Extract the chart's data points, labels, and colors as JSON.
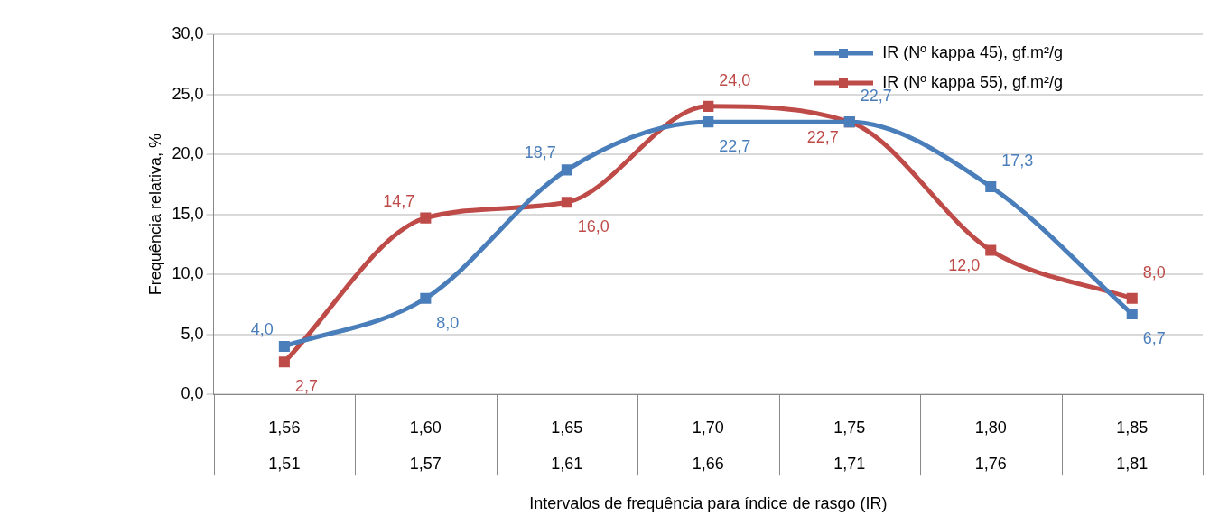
{
  "chart_data": {
    "type": "line",
    "xlabel": "Intervalos de frequência para índice de rasgo (IR)",
    "ylabel": "Frequência relativa, %",
    "categories": [
      "1,56\n1,51",
      "1,60\n1,57",
      "1,65\n1,61",
      "1,70\n1,66",
      "1,75\n1,71",
      "1,80\n1,76",
      "1,85\n1,81"
    ],
    "ylim": [
      0,
      30
    ],
    "yticks": [
      {
        "value": 0,
        "label": "0,0"
      },
      {
        "value": 5,
        "label": "5,0"
      },
      {
        "value": 10,
        "label": "10,0"
      },
      {
        "value": 15,
        "label": "15,0"
      },
      {
        "value": 20,
        "label": "20,0"
      },
      {
        "value": 25,
        "label": "25,0"
      },
      {
        "value": 30,
        "label": "30,0"
      }
    ],
    "grid": "y",
    "legend": "top right",
    "marker": "square",
    "line_style": "solid",
    "series": [
      {
        "name": "IR (Nº kappa 45), gf.m²/g",
        "color": "#4a7ebb",
        "values": [
          4.0,
          8.0,
          18.7,
          22.7,
          22.7,
          17.3,
          6.7
        ],
        "value_labels": [
          "4,0",
          "8,0",
          "18,7",
          "22,7",
          "22,7",
          "17,3",
          "6,7"
        ]
      },
      {
        "name": "IR (Nº kappa 55), gf.m²/g",
        "color": "#be4b48",
        "values": [
          2.7,
          14.7,
          16.0,
          24.0,
          22.7,
          12.0,
          8.0
        ],
        "value_labels": [
          "2,7",
          "14,7",
          "16,0",
          "24,0",
          "22,7",
          "12,0",
          "8,0"
        ]
      }
    ]
  }
}
